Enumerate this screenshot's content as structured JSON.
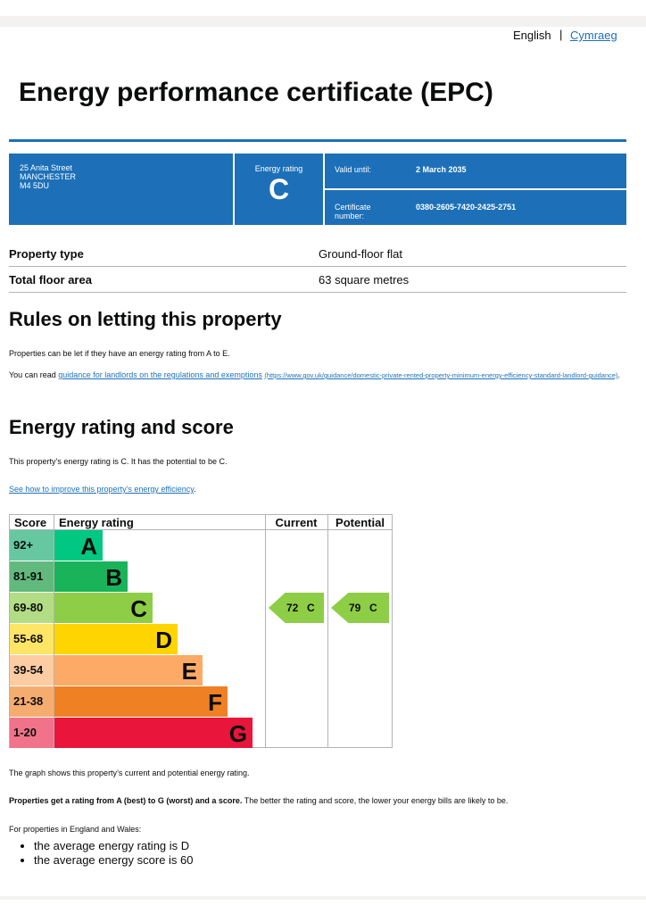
{
  "header": {
    "lang_en": "English",
    "lang_cy": "Cymraeg",
    "title": "Energy performance certificate (EPC)"
  },
  "summary": {
    "address": [
      "25 Anita Street",
      "MANCHESTER",
      "M4 5DU"
    ],
    "rating_label": "Energy rating",
    "rating": "C",
    "valid_label": "Valid until:",
    "valid_value": "2 March 2035",
    "cert_label": [
      "Certificate",
      "number:"
    ],
    "cert_value": "0380-2605-7420-2425-2751"
  },
  "property": {
    "rows": [
      [
        "Property type",
        "Ground-floor flat"
      ],
      [
        "Total floor area",
        "63 square metres"
      ]
    ]
  },
  "letting": {
    "heading": "Rules on letting this property",
    "p1": "Properties can be let if they have an energy rating from A to E.",
    "p2_pre": "You can read ",
    "p2_link": "guidance for landlords on the regulations and exemptions",
    "p2_url": "(https://www.gov.uk/guidance/domestic-private-rented-property-minimum-energy-efficiency-standard-landlord-guidance)",
    "p2_end": "."
  },
  "energy": {
    "heading": "Energy rating and score",
    "p1": "This property’s energy rating is C. It has the potential to be C.",
    "link": "See how to improve this property’s energy efficiency",
    "link_end": "."
  },
  "epc_table": {
    "headers": [
      "Score",
      "Energy rating",
      "Current",
      "Potential"
    ],
    "rows": [
      {
        "score": "92+",
        "band": "A"
      },
      {
        "score": "81-91",
        "band": "B"
      },
      {
        "score": "69-80",
        "band": "C"
      },
      {
        "score": "55-68",
        "band": "D"
      },
      {
        "score": "39-54",
        "band": "E"
      },
      {
        "score": "21-38",
        "band": "F"
      },
      {
        "score": "1-20",
        "band": "G"
      }
    ],
    "current": {
      "score": 72,
      "band": "C"
    },
    "potential": {
      "score": 79,
      "band": "C"
    }
  },
  "footer": {
    "graph_note": "The graph shows this property’s current and potential energy rating.",
    "bold": "Properties get a rating from A (best) to G (worst) and a score.",
    "rest": " The better the rating and score, the lower your energy bills are likely to be.",
    "england": "For properties in England and Wales:",
    "list": [
      "the average energy rating is D",
      "the average energy score is 60"
    ]
  }
}
